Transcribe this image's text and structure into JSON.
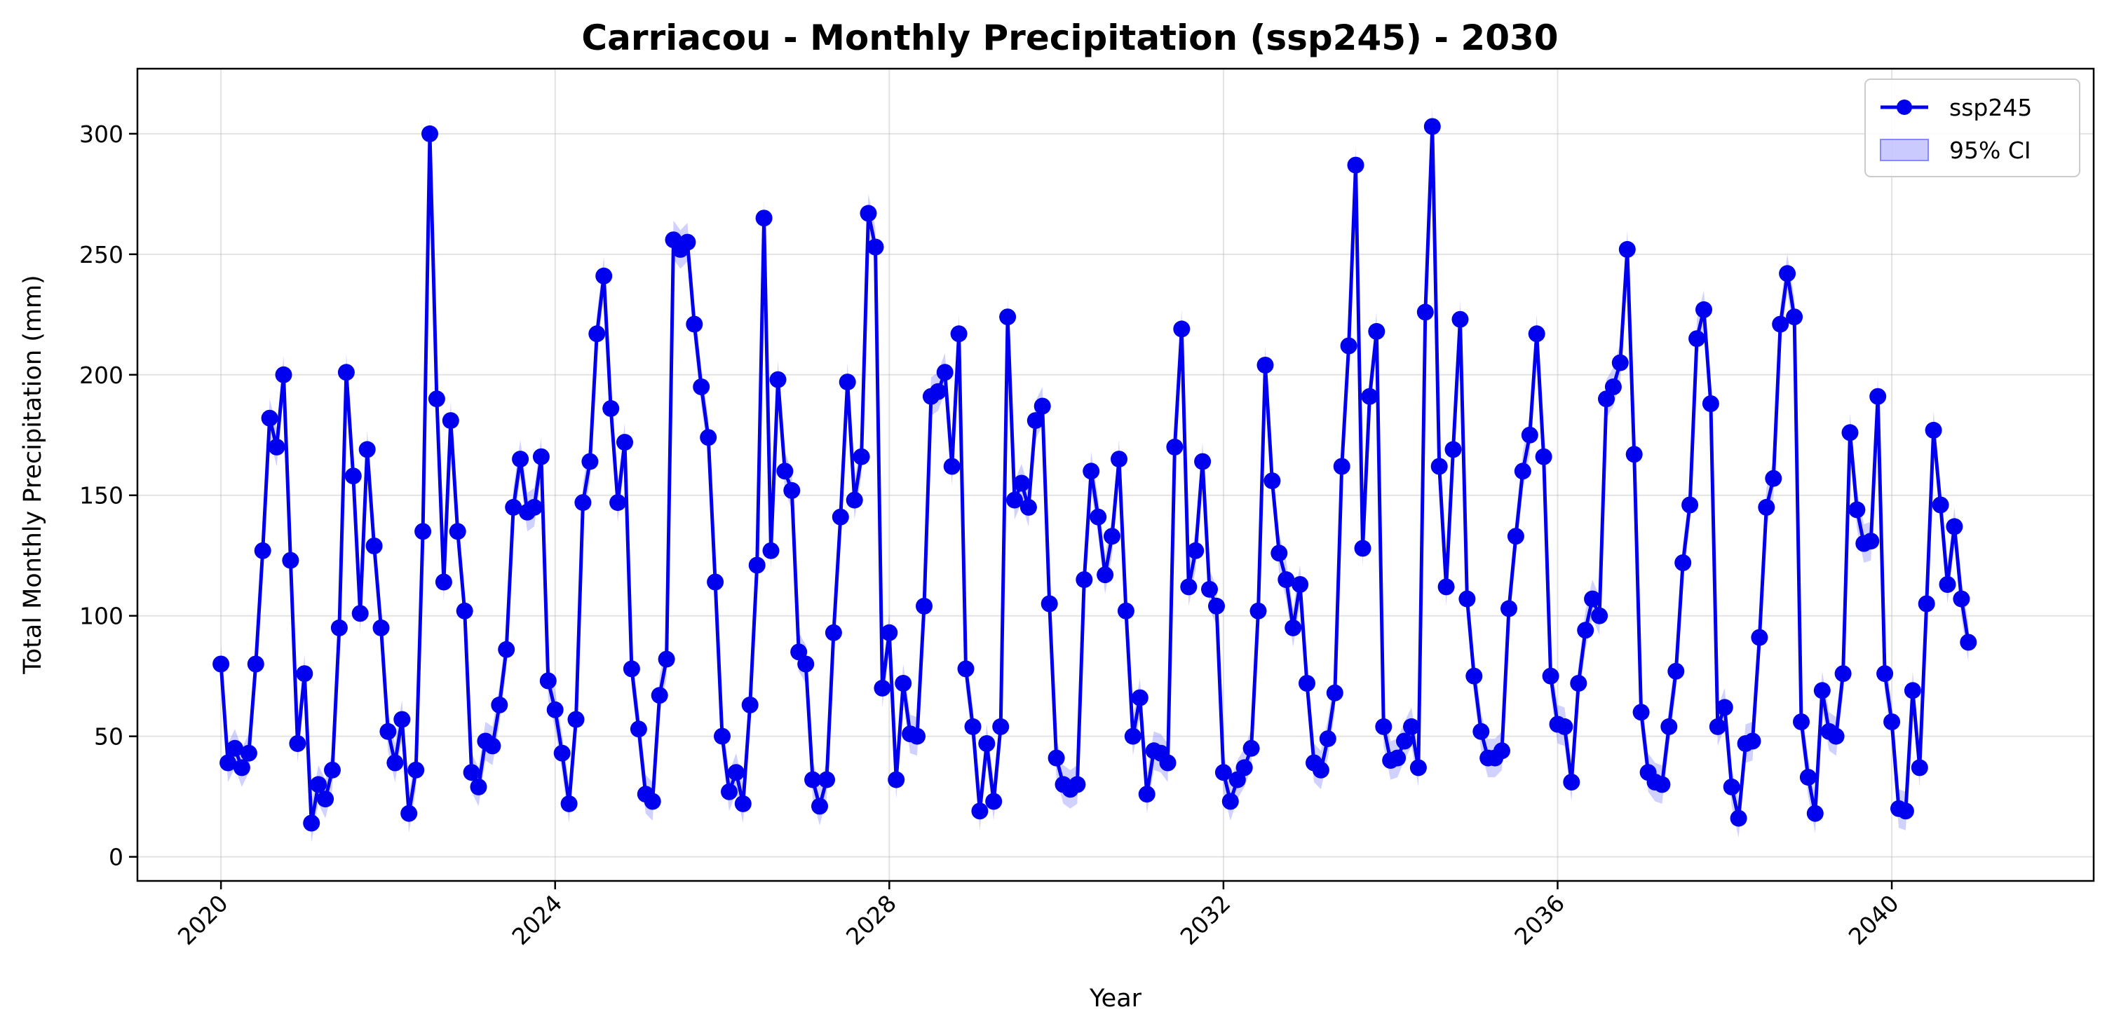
{
  "chart_data": {
    "type": "line",
    "title": "Carriacou - Monthly Precipitation (ssp245) - 2030",
    "xlabel": "Year",
    "ylabel": "Total Monthly Precipitation (mm)",
    "xlim": [
      "2019-01",
      "2042-06"
    ],
    "ylim": [
      -10,
      327
    ],
    "xticks": [
      "2020",
      "2024",
      "2028",
      "2032",
      "2036",
      "2040"
    ],
    "yticks": [
      0,
      50,
      100,
      150,
      200,
      250,
      300
    ],
    "grid": true,
    "legend_position": "top-right",
    "x_start": "2020-01",
    "x_step": "1 month",
    "series": [
      {
        "name": "ssp245",
        "color": "#0000ee",
        "marker": "circle",
        "values": [
          80,
          39,
          45,
          37,
          43,
          80,
          127,
          182,
          170,
          200,
          123,
          47,
          76,
          14,
          30,
          24,
          36,
          95,
          201,
          158,
          101,
          169,
          129,
          95,
          52,
          39,
          57,
          18,
          36,
          135,
          300,
          190,
          114,
          181,
          135,
          102,
          35,
          29,
          48,
          46,
          63,
          86,
          145,
          165,
          143,
          145,
          166,
          73,
          61,
          43,
          22,
          57,
          147,
          164,
          217,
          241,
          186,
          147,
          172,
          78,
          53,
          26,
          23,
          67,
          82,
          256,
          252,
          255,
          221,
          195,
          174,
          114,
          50,
          27,
          35,
          22,
          63,
          121,
          265,
          127,
          198,
          160,
          152,
          85,
          80,
          32,
          21,
          32,
          93,
          141,
          197,
          148,
          166,
          267,
          253,
          70,
          93,
          32,
          72,
          51,
          50,
          104,
          191,
          193,
          201,
          162,
          217,
          78,
          54,
          19,
          47,
          23,
          54,
          224,
          148,
          155,
          145,
          181,
          187,
          105,
          41,
          30,
          28,
          30,
          115,
          160,
          141,
          117,
          133,
          165,
          102,
          50,
          66,
          26,
          44,
          43,
          39,
          170,
          219,
          112,
          127,
          164,
          111,
          104,
          35,
          23,
          32,
          37,
          45,
          102,
          204,
          156,
          126,
          115,
          95,
          113,
          72,
          39,
          36,
          49,
          68,
          162,
          212,
          287,
          128,
          191,
          218,
          54,
          40,
          41,
          48,
          54,
          37,
          226,
          303,
          162,
          112,
          169,
          223,
          107,
          75,
          52,
          41,
          41,
          44,
          103,
          133,
          160,
          175,
          217,
          166,
          75,
          55,
          54,
          31,
          72,
          94,
          107,
          100,
          190,
          195,
          205,
          252,
          167,
          60,
          35,
          31,
          30,
          54,
          77,
          122,
          146,
          215,
          227,
          188,
          54,
          62,
          29,
          16,
          47,
          48,
          91,
          145,
          157,
          221,
          242,
          224,
          56,
          33,
          18,
          69,
          52,
          50,
          76,
          176,
          144,
          130,
          131,
          191,
          76,
          56,
          20,
          19,
          69,
          37,
          105,
          177,
          146,
          113,
          137,
          107,
          89
        ]
      },
      {
        "name": "95% CI",
        "color": "#6666ff",
        "type": "band",
        "half_width": 8
      }
    ]
  }
}
